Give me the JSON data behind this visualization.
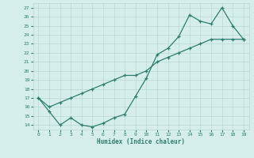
{
  "upper_x": [
    0,
    1,
    2,
    3,
    4,
    5,
    6,
    7,
    8,
    9,
    10,
    11,
    12,
    13,
    14,
    15,
    16,
    17,
    18,
    19
  ],
  "upper_y": [
    17.0,
    15.5,
    14.0,
    14.8,
    14.0,
    13.8,
    14.2,
    14.8,
    15.2,
    17.2,
    19.2,
    21.8,
    22.5,
    23.8,
    26.2,
    25.5,
    25.2,
    27.0,
    25.0,
    23.5
  ],
  "lower_x": [
    0,
    1,
    2,
    3,
    4,
    5,
    6,
    7,
    8,
    9,
    10,
    11,
    12,
    13,
    14,
    15,
    16,
    17,
    18,
    19
  ],
  "lower_y": [
    17.0,
    16.0,
    16.5,
    17.0,
    17.5,
    18.0,
    18.5,
    19.0,
    19.5,
    19.5,
    20.0,
    21.0,
    21.5,
    22.0,
    22.5,
    23.0,
    23.5,
    23.5,
    23.5,
    23.5
  ],
  "line_color": "#2d7d6e",
  "bg_color": "#d6eeeb",
  "grid_color": "#b8d8d4",
  "xlabel": "Humidex (Indice chaleur)",
  "xlim": [
    -0.5,
    19.5
  ],
  "ylim": [
    13.5,
    27.5
  ],
  "xticks": [
    0,
    1,
    2,
    3,
    4,
    5,
    6,
    7,
    8,
    9,
    10,
    11,
    12,
    13,
    14,
    15,
    16,
    17,
    18,
    19
  ],
  "yticks": [
    14,
    15,
    16,
    17,
    18,
    19,
    20,
    21,
    22,
    23,
    24,
    25,
    26,
    27
  ]
}
